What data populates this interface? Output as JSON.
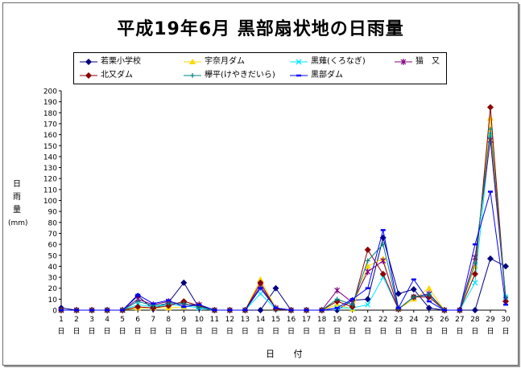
{
  "chart_data": {
    "type": "line",
    "title": "平成19年6月 黒部扇状地の日雨量",
    "ylabel": "日雨量(mm)",
    "ylabel_chars": [
      "日",
      "雨",
      "量"
    ],
    "ylabel_unit": "(mm)",
    "xlabel": "日 付",
    "x_tick_suffix": "日",
    "ylim": [
      0,
      200
    ],
    "ytick_step": 10,
    "grid": false,
    "legend": "top",
    "x": [
      1,
      2,
      3,
      4,
      5,
      6,
      7,
      8,
      9,
      10,
      11,
      12,
      13,
      14,
      15,
      16,
      17,
      18,
      19,
      20,
      21,
      22,
      23,
      24,
      25,
      26,
      27,
      28,
      29,
      30
    ],
    "series": [
      {
        "name": "若栗小学校",
        "color": "#000080",
        "marker": "diamond",
        "values": [
          2,
          0,
          0,
          0,
          0,
          13,
          1,
          7,
          25,
          2,
          0,
          0,
          0,
          0,
          20,
          0,
          0,
          0,
          0,
          9,
          10,
          66,
          15,
          19,
          2,
          0,
          0,
          0,
          47,
          40
        ]
      },
      {
        "name": "宇奈月ダム",
        "color": "#ffd700",
        "marker": "triangle",
        "values": [
          0,
          0,
          0,
          0,
          0,
          2,
          2,
          2,
          3,
          5,
          0,
          0,
          0,
          28,
          2,
          0,
          0,
          0,
          5,
          1,
          40,
          47,
          1,
          10,
          20,
          0,
          0,
          40,
          175,
          10
        ]
      },
      {
        "name": "黒薙(くろなぎ)",
        "color": "#00e5ff",
        "marker": "x",
        "values": [
          0,
          0,
          0,
          0,
          0,
          5,
          3,
          5,
          4,
          2,
          0,
          0,
          0,
          15,
          1,
          0,
          0,
          0,
          2,
          2,
          5,
          30,
          1,
          12,
          14,
          0,
          0,
          25,
          160,
          12
        ]
      },
      {
        "name": "猫　又",
        "color": "#800080",
        "marker": "asterisk",
        "values": [
          0,
          0,
          0,
          0,
          0,
          10,
          5,
          8,
          5,
          5,
          0,
          0,
          0,
          22,
          2,
          0,
          0,
          0,
          18,
          7,
          35,
          45,
          1,
          12,
          15,
          0,
          0,
          48,
          155,
          10
        ]
      },
      {
        "name": "北又ダム",
        "color": "#8b0000",
        "marker": "circle",
        "values": [
          0,
          0,
          0,
          0,
          0,
          3,
          2,
          4,
          8,
          4,
          0,
          0,
          0,
          25,
          1,
          0,
          0,
          0,
          8,
          3,
          55,
          33,
          1,
          12,
          12,
          0,
          0,
          33,
          185,
          8
        ]
      },
      {
        "name": "欅平(けやきだいら)",
        "color": "#008080",
        "marker": "plus",
        "values": [
          0,
          0,
          0,
          0,
          0,
          8,
          4,
          6,
          6,
          3,
          0,
          0,
          0,
          20,
          2,
          0,
          0,
          0,
          10,
          5,
          45,
          60,
          1,
          12,
          14,
          0,
          0,
          43,
          165,
          12
        ]
      },
      {
        "name": "黒部ダム",
        "color": "#0000ff",
        "marker": "dash",
        "values": [
          0,
          0,
          0,
          0,
          0,
          14,
          6,
          9,
          3,
          5,
          0,
          0,
          0,
          20,
          2,
          0,
          0,
          0,
          2,
          10,
          20,
          73,
          2,
          28,
          8,
          0,
          0,
          60,
          108,
          5
        ]
      }
    ]
  }
}
